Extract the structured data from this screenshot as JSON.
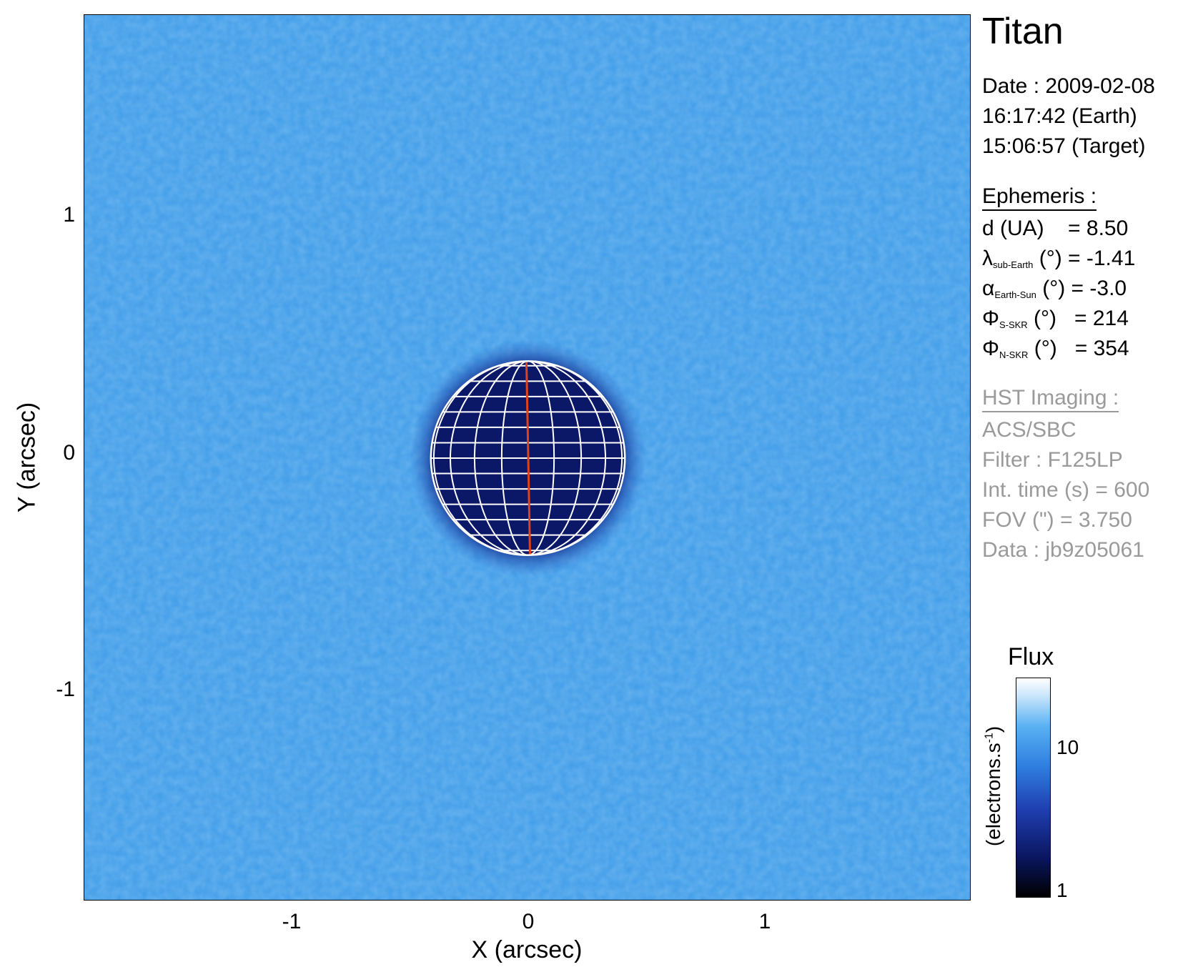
{
  "chart_data": {
    "type": "heatmap",
    "title": "Titan",
    "xlabel": "X (arcsec)",
    "ylabel": "Y (arcsec)",
    "xlim": [
      -1.875,
      1.875
    ],
    "ylim": [
      -1.875,
      1.875
    ],
    "x_ticks": [
      "-1",
      "0",
      "1"
    ],
    "y_ticks": [
      "1",
      "0",
      "-1"
    ],
    "disk_radius_arcsec": 0.41,
    "colorbar": {
      "title": "Flux",
      "unit_label": "(electrons.s-1)",
      "unit_base": "(electrons.s",
      "unit_sup": "-1",
      "unit_close": ")",
      "ticks": [
        "10",
        "1"
      ],
      "scale": "log"
    }
  },
  "info": {
    "title": "Titan",
    "date_line": "Date : 2009-02-08",
    "earth_time": "16:17:42 (Earth)",
    "target_time": "15:06:57 (Target)",
    "ephemeris_header": "Ephemeris :",
    "ephemeris": [
      {
        "sym": "d (UA)",
        "sub": "",
        "rest": "    = 8.50"
      },
      {
        "sym": "λ",
        "sub": "sub-Earth",
        "rest": " (°) = -1.41"
      },
      {
        "sym": "α",
        "sub": "Earth-Sun",
        "rest": " (°) = -3.0"
      },
      {
        "sym": "Φ",
        "sub": "S-SKR",
        "rest": " (°)   = 214"
      },
      {
        "sym": "Φ",
        "sub": "N-SKR",
        "rest": " (°)   = 354"
      }
    ],
    "hst_header": "HST Imaging :",
    "hst": [
      "ACS/SBC",
      "Filter : F125LP",
      "Int. time (s) = 600",
      "FOV (\") = 3.750",
      "Data : jb9z05061"
    ]
  },
  "colors": {
    "background_blue": "#3f9ce8",
    "disk": "#0b1868",
    "grid": "#ffffff",
    "meridian": "#e0431a",
    "gray_text": "#9a9a9a"
  }
}
